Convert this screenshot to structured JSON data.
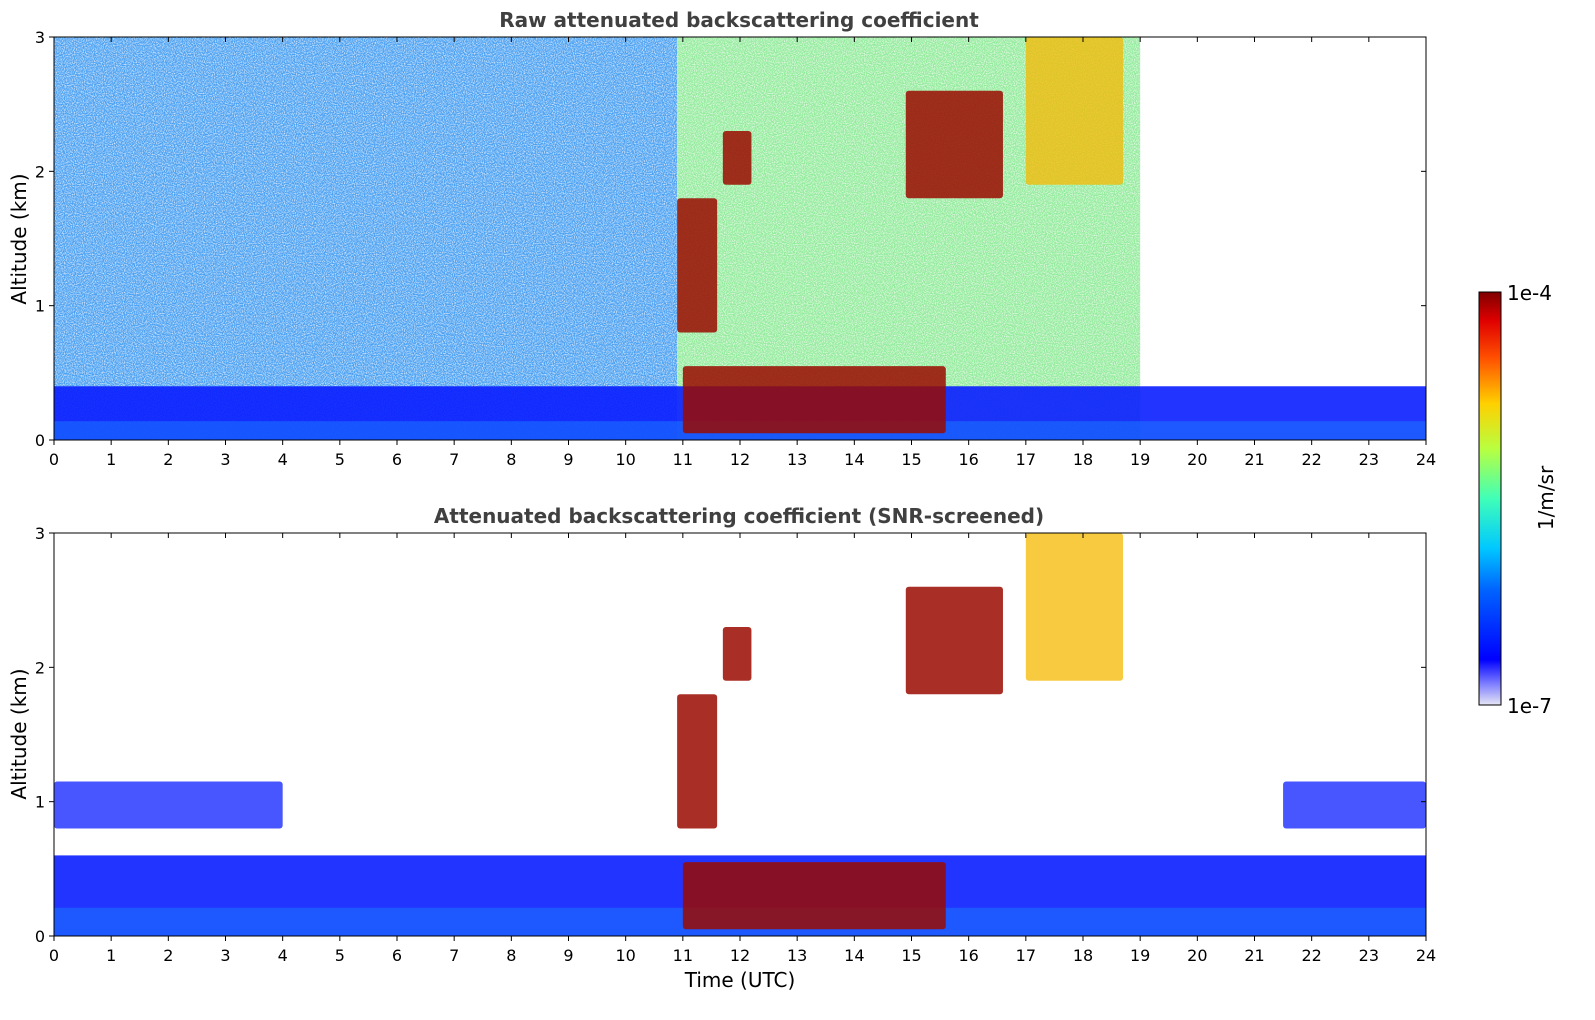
{
  "chart_data": [
    {
      "type": "heatmap",
      "title": "Raw attenuated backscattering coefficient",
      "xlabel": "",
      "ylabel": "Altitude (km)",
      "xlim": [
        0,
        24
      ],
      "ylim": [
        0,
        3
      ],
      "x_ticks": [
        "0",
        "1",
        "2",
        "3",
        "4",
        "5",
        "6",
        "7",
        "8",
        "9",
        "10",
        "11",
        "12",
        "13",
        "14",
        "15",
        "16",
        "17",
        "18",
        "19",
        "20",
        "21",
        "22",
        "23",
        "24"
      ],
      "y_ticks": [
        "0",
        "1",
        "2",
        "3"
      ],
      "features": [
        {
          "kind": "boundary_layer",
          "x": [
            0,
            24
          ],
          "y_top_km": 0.4,
          "level": "low"
        },
        {
          "kind": "noise_background",
          "x": [
            0,
            10.9
          ],
          "level": "low-mid"
        },
        {
          "kind": "noise_background",
          "x": [
            10.9,
            19
          ],
          "level": "mid-high"
        },
        {
          "kind": "cloud_base",
          "x": [
            11,
            15.6
          ],
          "y_km": [
            0.05,
            0.55
          ],
          "level": "max"
        },
        {
          "kind": "cloud",
          "x": [
            11.7,
            12.2
          ],
          "y_km": [
            1.9,
            2.3
          ],
          "level": "max"
        },
        {
          "kind": "cloud",
          "x": [
            14.9,
            16.6
          ],
          "y_km": [
            1.8,
            2.6
          ],
          "level": "max"
        },
        {
          "kind": "virga",
          "x": [
            10.9,
            11.6
          ],
          "y_km": [
            0.8,
            1.8
          ],
          "level": "max"
        },
        {
          "kind": "cirrus",
          "x": [
            17.0,
            18.7
          ],
          "y_km": [
            1.9,
            3.0
          ],
          "level": "high"
        }
      ]
    },
    {
      "type": "heatmap",
      "title": "Attenuated backscattering coefficient (SNR-screened)",
      "xlabel": "Time (UTC)",
      "ylabel": "Altitude (km)",
      "xlim": [
        0,
        24
      ],
      "ylim": [
        0,
        3
      ],
      "x_ticks": [
        "0",
        "1",
        "2",
        "3",
        "4",
        "5",
        "6",
        "7",
        "8",
        "9",
        "10",
        "11",
        "12",
        "13",
        "14",
        "15",
        "16",
        "17",
        "18",
        "19",
        "20",
        "21",
        "22",
        "23",
        "24"
      ],
      "y_ticks": [
        "0",
        "1",
        "2",
        "3"
      ],
      "features": [
        {
          "kind": "boundary_layer",
          "x": [
            0,
            24
          ],
          "y_top_km": 0.6,
          "level": "low"
        },
        {
          "kind": "aerosol_layer",
          "x": [
            0,
            4
          ],
          "y_km": [
            0.8,
            1.15
          ],
          "level": "low"
        },
        {
          "kind": "aerosol_layer",
          "x": [
            21.5,
            24
          ],
          "y_km": [
            0.8,
            1.15
          ],
          "level": "low"
        },
        {
          "kind": "cloud_base",
          "x": [
            11,
            15.6
          ],
          "y_km": [
            0.05,
            0.55
          ],
          "level": "max"
        },
        {
          "kind": "cloud",
          "x": [
            11.7,
            12.2
          ],
          "y_km": [
            1.9,
            2.3
          ],
          "level": "max"
        },
        {
          "kind": "cloud",
          "x": [
            14.9,
            16.6
          ],
          "y_km": [
            1.8,
            2.6
          ],
          "level": "max"
        },
        {
          "kind": "virga",
          "x": [
            10.9,
            11.6
          ],
          "y_km": [
            0.8,
            1.8
          ],
          "level": "max"
        },
        {
          "kind": "cirrus",
          "x": [
            17.0,
            18.7
          ],
          "y_km": [
            1.9,
            3.0
          ],
          "level": "high"
        }
      ]
    }
  ],
  "colorbar": {
    "max_label": "1e-4",
    "min_label": "1e-7",
    "unit_label": "1/m/sr",
    "colormap": "jet",
    "low_color": "#e6e6f5",
    "high_color": "#7f0000"
  }
}
